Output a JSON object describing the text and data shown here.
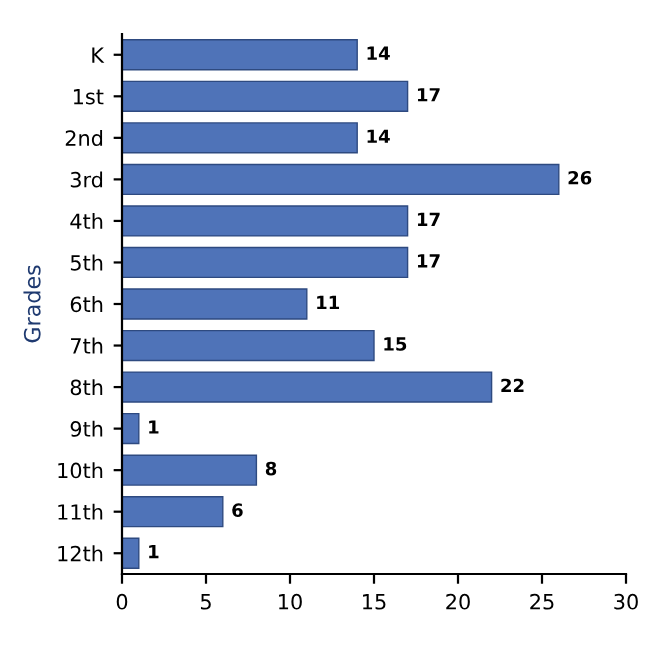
{
  "chart_data": {
    "type": "bar",
    "orientation": "horizontal",
    "ylabel": "Grades",
    "categories": [
      "K",
      "1st",
      "2nd",
      "3rd",
      "4th",
      "5th",
      "6th",
      "7th",
      "8th",
      "9th",
      "10th",
      "11th",
      "12th"
    ],
    "values": [
      14,
      17,
      14,
      26,
      17,
      17,
      11,
      15,
      22,
      1,
      8,
      6,
      1
    ],
    "color": "#4f73b8",
    "xlim": [
      0,
      30
    ],
    "xticks": [
      0,
      5,
      10,
      15,
      20,
      25,
      30
    ],
    "data_labels": true,
    "grid": false
  }
}
